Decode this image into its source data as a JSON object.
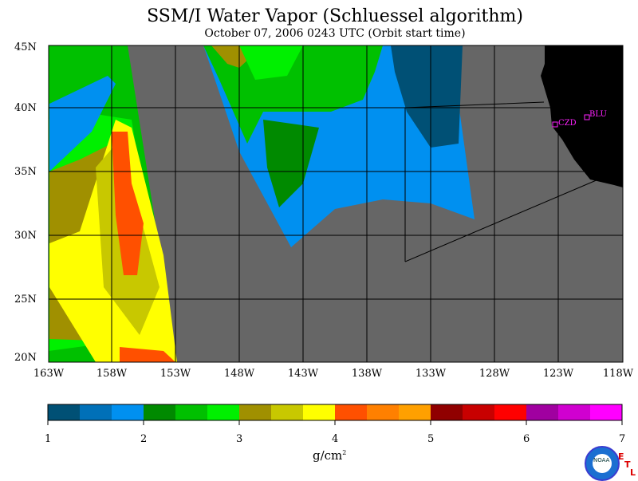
{
  "title": "SSM/I Water Vapor (Schluessel algorithm)",
  "subtitle": "October 07, 2006  0243 UTC  (Orbit start time)",
  "map": {
    "lat_labels": [
      "45N",
      "40N",
      "35N",
      "30N",
      "25N",
      "20N"
    ],
    "lon_labels": [
      "163W",
      "158W",
      "153W",
      "148W",
      "143W",
      "138W",
      "133W",
      "128W",
      "123W",
      "118W"
    ],
    "stations": [
      "CZD",
      "BLU"
    ],
    "colors": {
      "nodata": "#666666",
      "land": "#000000",
      "station": "#ff22ff"
    }
  },
  "colorbar": {
    "colors": [
      "#005075",
      "#0070b8",
      "#0090f0",
      "#008a00",
      "#00c000",
      "#00f000",
      "#a09000",
      "#c8c800",
      "#ffff00",
      "#ff5000",
      "#ff8000",
      "#ffa000",
      "#900000",
      "#c80000",
      "#ff0000",
      "#a000a0",
      "#d000d0",
      "#ff00ff"
    ],
    "ticks": [
      "1",
      "2",
      "3",
      "4",
      "5",
      "6",
      "7"
    ],
    "units_base": "g/cm",
    "units_exp": "2"
  },
  "logo": {
    "text": "NOAA",
    "etl": [
      "E",
      "T",
      "L"
    ]
  }
}
